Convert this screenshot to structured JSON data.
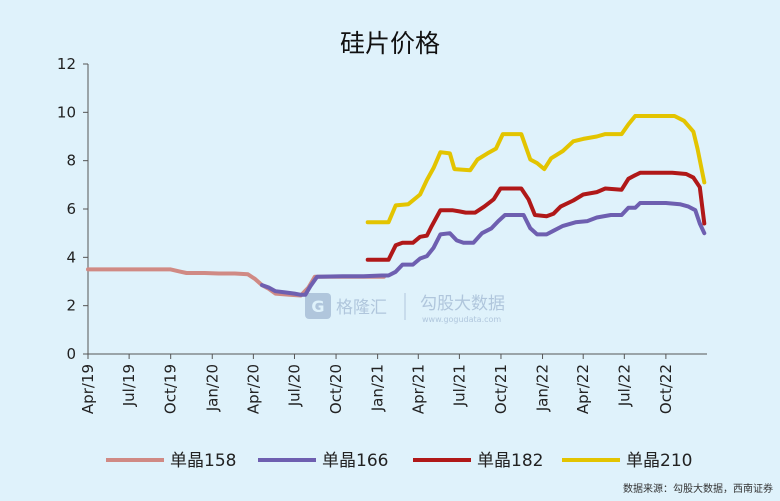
{
  "chart_data": {
    "type": "line",
    "title": "硅片价格",
    "xlabel": "",
    "ylabel": "",
    "ylim": [
      0,
      12
    ],
    "yticks": [
      0,
      2,
      4,
      6,
      8,
      10,
      12
    ],
    "xlim": [
      "2019-04-01",
      "2022-12-31"
    ],
    "xticks": [
      "Apr/19",
      "Jul/19",
      "Oct/19",
      "Jan/20",
      "Apr/20",
      "Jul/20",
      "Oct/20",
      "Jan/21",
      "Apr/21",
      "Jul/21",
      "Oct/21",
      "Jan/22",
      "Apr/22",
      "Jul/22",
      "Oct/22"
    ],
    "grid": false,
    "legend_position": "bottom",
    "series": [
      {
        "name": "单晶158",
        "color": "#d08a84",
        "points": [
          [
            "2019-04-01",
            3.5
          ],
          [
            "2019-06-01",
            3.5
          ],
          [
            "2019-08-01",
            3.5
          ],
          [
            "2019-10-01",
            3.5
          ],
          [
            "2019-10-20",
            3.42
          ],
          [
            "2019-11-05",
            3.35
          ],
          [
            "2019-12-15",
            3.35
          ],
          [
            "2020-01-15",
            3.33
          ],
          [
            "2020-02-20",
            3.33
          ],
          [
            "2020-03-20",
            3.3
          ],
          [
            "2020-04-05",
            3.1
          ],
          [
            "2020-04-20",
            2.85
          ],
          [
            "2020-05-05",
            2.7
          ],
          [
            "2020-05-20",
            2.5
          ],
          [
            "2020-06-20",
            2.45
          ],
          [
            "2020-07-15",
            2.42
          ],
          [
            "2020-08-01",
            2.75
          ],
          [
            "2020-08-15",
            3.2
          ],
          [
            "2020-10-01",
            3.2
          ],
          [
            "2020-11-15",
            3.2
          ],
          [
            "2020-12-15",
            3.2
          ],
          [
            "2021-01-15",
            3.2
          ]
        ]
      },
      {
        "name": "单晶166",
        "color": "#6e5fb0",
        "points": [
          [
            "2020-04-20",
            2.85
          ],
          [
            "2020-05-05",
            2.75
          ],
          [
            "2020-05-20",
            2.6
          ],
          [
            "2020-06-10",
            2.55
          ],
          [
            "2020-07-01",
            2.5
          ],
          [
            "2020-07-15",
            2.45
          ],
          [
            "2020-07-25",
            2.45
          ],
          [
            "2020-08-05",
            2.8
          ],
          [
            "2020-08-20",
            3.2
          ],
          [
            "2020-10-15",
            3.22
          ],
          [
            "2020-12-01",
            3.22
          ],
          [
            "2021-01-10",
            3.25
          ],
          [
            "2021-01-25",
            3.25
          ],
          [
            "2021-02-10",
            3.4
          ],
          [
            "2021-02-25",
            3.7
          ],
          [
            "2021-03-20",
            3.7
          ],
          [
            "2021-04-05",
            3.95
          ],
          [
            "2021-04-20",
            4.05
          ],
          [
            "2021-05-05",
            4.4
          ],
          [
            "2021-05-20",
            4.95
          ],
          [
            "2021-06-10",
            5.0
          ],
          [
            "2021-06-25",
            4.7
          ],
          [
            "2021-07-10",
            4.6
          ],
          [
            "2021-08-01",
            4.6
          ],
          [
            "2021-08-20",
            5.0
          ],
          [
            "2021-09-10",
            5.2
          ],
          [
            "2021-09-25",
            5.5
          ],
          [
            "2021-10-10",
            5.75
          ],
          [
            "2021-10-25",
            5.75
          ],
          [
            "2021-11-20",
            5.75
          ],
          [
            "2021-12-05",
            5.2
          ],
          [
            "2021-12-20",
            4.95
          ],
          [
            "2022-01-10",
            4.95
          ],
          [
            "2022-01-25",
            5.1
          ],
          [
            "2022-02-15",
            5.3
          ],
          [
            "2022-03-15",
            5.45
          ],
          [
            "2022-04-10",
            5.5
          ],
          [
            "2022-05-01",
            5.65
          ],
          [
            "2022-06-01",
            5.75
          ],
          [
            "2022-06-25",
            5.75
          ],
          [
            "2022-07-10",
            6.05
          ],
          [
            "2022-07-25",
            6.05
          ],
          [
            "2022-08-05",
            6.25
          ],
          [
            "2022-09-01",
            6.25
          ],
          [
            "2022-10-01",
            6.25
          ],
          [
            "2022-11-01",
            6.2
          ],
          [
            "2022-11-20",
            6.1
          ],
          [
            "2022-12-05",
            5.95
          ],
          [
            "2022-12-15",
            5.4
          ],
          [
            "2022-12-25",
            5.0
          ]
        ]
      },
      {
        "name": "单晶182",
        "color": "#b01818",
        "points": [
          [
            "2020-12-10",
            3.9
          ],
          [
            "2021-01-25",
            3.9
          ],
          [
            "2021-02-10",
            4.5
          ],
          [
            "2021-02-25",
            4.6
          ],
          [
            "2021-03-20",
            4.6
          ],
          [
            "2021-04-05",
            4.85
          ],
          [
            "2021-04-20",
            4.9
          ],
          [
            "2021-05-01",
            5.3
          ],
          [
            "2021-05-20",
            5.95
          ],
          [
            "2021-06-15",
            5.95
          ],
          [
            "2021-07-01",
            5.9
          ],
          [
            "2021-07-15",
            5.85
          ],
          [
            "2021-08-05",
            5.85
          ],
          [
            "2021-08-25",
            6.1
          ],
          [
            "2021-09-15",
            6.4
          ],
          [
            "2021-09-30",
            6.85
          ],
          [
            "2021-10-20",
            6.85
          ],
          [
            "2021-11-15",
            6.85
          ],
          [
            "2021-12-01",
            6.4
          ],
          [
            "2021-12-15",
            5.75
          ],
          [
            "2022-01-10",
            5.7
          ],
          [
            "2022-01-25",
            5.8
          ],
          [
            "2022-02-10",
            6.1
          ],
          [
            "2022-03-10",
            6.35
          ],
          [
            "2022-04-01",
            6.6
          ],
          [
            "2022-05-01",
            6.7
          ],
          [
            "2022-05-20",
            6.85
          ],
          [
            "2022-06-25",
            6.8
          ],
          [
            "2022-07-10",
            7.25
          ],
          [
            "2022-07-25",
            7.4
          ],
          [
            "2022-08-05",
            7.5
          ],
          [
            "2022-09-15",
            7.5
          ],
          [
            "2022-10-15",
            7.5
          ],
          [
            "2022-11-15",
            7.45
          ],
          [
            "2022-12-01",
            7.3
          ],
          [
            "2022-12-15",
            6.9
          ],
          [
            "2022-12-25",
            5.4
          ]
        ]
      },
      {
        "name": "单晶210",
        "color": "#e3c400",
        "points": [
          [
            "2020-12-10",
            5.45
          ],
          [
            "2021-01-25",
            5.45
          ],
          [
            "2021-02-10",
            6.15
          ],
          [
            "2021-03-10",
            6.2
          ],
          [
            "2021-04-05",
            6.6
          ],
          [
            "2021-04-20",
            7.2
          ],
          [
            "2021-05-05",
            7.7
          ],
          [
            "2021-05-20",
            8.35
          ],
          [
            "2021-06-10",
            8.3
          ],
          [
            "2021-06-20",
            7.65
          ],
          [
            "2021-07-25",
            7.6
          ],
          [
            "2021-08-10",
            8.05
          ],
          [
            "2021-09-01",
            8.3
          ],
          [
            "2021-09-20",
            8.5
          ],
          [
            "2021-10-05",
            9.1
          ],
          [
            "2021-11-15",
            9.1
          ],
          [
            "2021-12-05",
            8.05
          ],
          [
            "2021-12-20",
            7.9
          ],
          [
            "2022-01-05",
            7.65
          ],
          [
            "2022-01-20",
            8.1
          ],
          [
            "2022-02-15",
            8.4
          ],
          [
            "2022-03-10",
            8.8
          ],
          [
            "2022-04-01",
            8.9
          ],
          [
            "2022-05-01",
            9.0
          ],
          [
            "2022-05-20",
            9.1
          ],
          [
            "2022-06-25",
            9.1
          ],
          [
            "2022-07-10",
            9.5
          ],
          [
            "2022-07-25",
            9.85
          ],
          [
            "2022-08-10",
            9.85
          ],
          [
            "2022-09-15",
            9.85
          ],
          [
            "2022-10-20",
            9.85
          ],
          [
            "2022-11-10",
            9.65
          ],
          [
            "2022-12-01",
            9.2
          ],
          [
            "2022-12-10",
            8.5
          ],
          [
            "2022-12-25",
            7.1
          ]
        ]
      }
    ],
    "source": "数据来源：勾股大数据，西南证券"
  },
  "watermark": {
    "brand_left": "格隆汇",
    "brand_right": "勾股大数据",
    "brand_right_url": "www.gogudata.com"
  }
}
